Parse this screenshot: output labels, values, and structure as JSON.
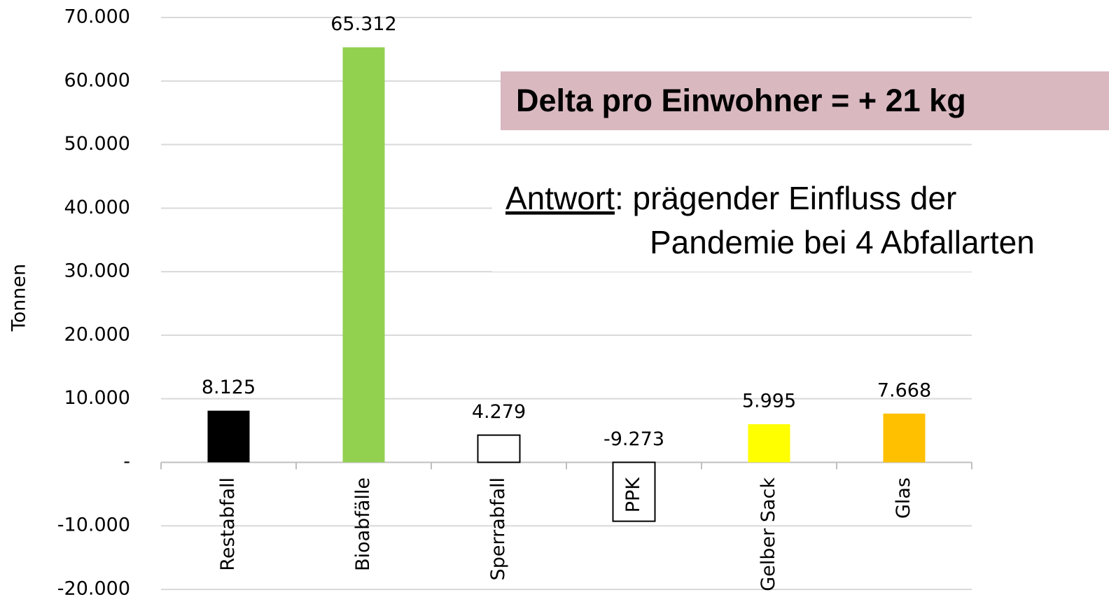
{
  "chart_data": {
    "type": "bar",
    "y_label": "Tonnen",
    "categories": [
      "Restabfall",
      "Bioabfälle",
      "Sperrabfall",
      "PPK",
      "Gelber Sack",
      "Glas"
    ],
    "values": [
      8125,
      65312,
      4279,
      -9273,
      5995,
      7668
    ],
    "value_labels": [
      "8.125",
      "65.312",
      "4.279",
      "-9.273",
      "5.995",
      "7.668"
    ],
    "colors": [
      "#000000",
      "#92d050",
      "#ffffff",
      "#ffffff",
      "#ffff00",
      "#ffc000"
    ],
    "ylim": [
      -20000,
      70000
    ],
    "yticks": [
      {
        "value": -20000,
        "label": "-20.000"
      },
      {
        "value": -10000,
        "label": "-10.000"
      },
      {
        "value": 0,
        "label": "-"
      },
      {
        "value": 10000,
        "label": "10.000"
      },
      {
        "value": 20000,
        "label": "20.000"
      },
      {
        "value": 30000,
        "label": "30.000"
      },
      {
        "value": 40000,
        "label": "40.000"
      },
      {
        "value": 50000,
        "label": "50.000"
      },
      {
        "value": 60000,
        "label": "60.000"
      },
      {
        "value": 70000,
        "label": "70.000"
      }
    ],
    "grid": true,
    "annotations": [
      "Delta pro Einwohner = + 21 kg",
      "Antwort",
      ": prägender Einfluss der",
      "Pandemie bei 4 Abfallarten"
    ]
  }
}
